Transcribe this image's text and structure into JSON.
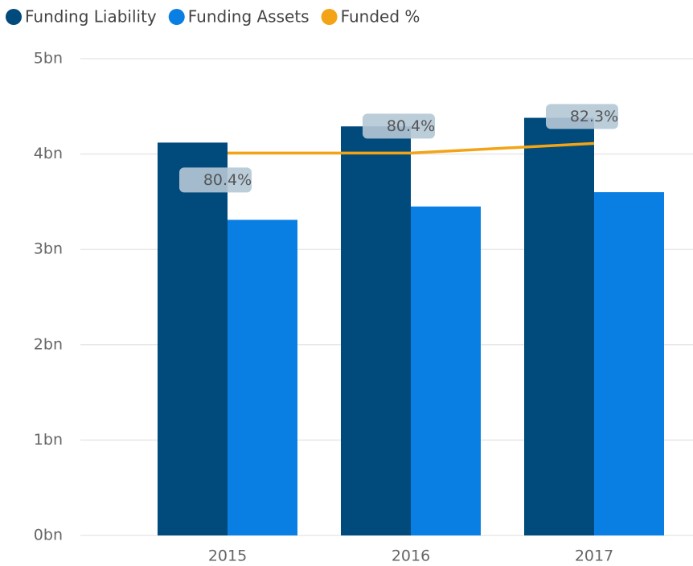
{
  "chart_data": {
    "type": "bar_line",
    "categories": [
      "2015",
      "2016",
      "2017"
    ],
    "series": [
      {
        "name": "Funding Liability",
        "color": "#004a7c",
        "values": [
          4.12,
          4.29,
          4.38
        ]
      },
      {
        "name": "Funding Assets",
        "color": "#0a7fe3",
        "values": [
          3.31,
          3.45,
          3.6
        ]
      },
      {
        "name": "Funded %",
        "color": "#f2a416",
        "axis": "y2",
        "values": [
          80.4,
          80.4,
          82.3
        ],
        "value_labels": [
          "80.4%",
          "80.4%",
          "82.3%"
        ]
      }
    ],
    "ylim": [
      0,
      5
    ],
    "yticks": [
      {
        "value": 0,
        "label": "0bn"
      },
      {
        "value": 1,
        "label": "1bn"
      },
      {
        "value": 2,
        "label": "2bn"
      },
      {
        "value": 3,
        "label": "3bn"
      },
      {
        "value": 4,
        "label": "4bn"
      },
      {
        "value": 5,
        "label": "5bn"
      }
    ],
    "y2lim": [
      5,
      99
    ],
    "grid": true,
    "legend": "top-left"
  }
}
